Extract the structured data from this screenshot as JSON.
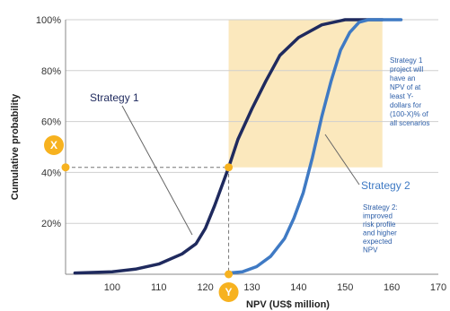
{
  "chart_data": {
    "type": "line",
    "xlabel": "NPV (US$ million)",
    "ylabel": "Cumulative probability",
    "xlim": [
      90,
      170
    ],
    "ylim": [
      0,
      100
    ],
    "x_ticks": [
      "100",
      "110",
      "120",
      "130",
      "140",
      "150",
      "160",
      "170"
    ],
    "y_ticks": [
      "20%",
      "40%",
      "60%",
      "80%",
      "100%"
    ],
    "grid": true,
    "series": [
      {
        "name": "Strategy 1",
        "color": "#1f2a5e",
        "points": [
          [
            92,
            0.5
          ],
          [
            100,
            1
          ],
          [
            105,
            2
          ],
          [
            110,
            4
          ],
          [
            115,
            8
          ],
          [
            118,
            12
          ],
          [
            120,
            18
          ],
          [
            122,
            27
          ],
          [
            125,
            42
          ],
          [
            127,
            53
          ],
          [
            130,
            65
          ],
          [
            133,
            76
          ],
          [
            136,
            86
          ],
          [
            140,
            93
          ],
          [
            145,
            98
          ],
          [
            150,
            100
          ],
          [
            158,
            100
          ]
        ]
      },
      {
        "name": "Strategy 2",
        "color": "#3f7ac4",
        "points": [
          [
            125,
            0.5
          ],
          [
            128,
            1
          ],
          [
            131,
            3
          ],
          [
            134,
            7
          ],
          [
            137,
            14
          ],
          [
            139,
            22
          ],
          [
            141,
            32
          ],
          [
            143,
            46
          ],
          [
            145,
            62
          ],
          [
            147,
            76
          ],
          [
            149,
            88
          ],
          [
            151,
            95
          ],
          [
            153,
            99
          ],
          [
            155,
            100
          ],
          [
            162,
            100
          ]
        ]
      }
    ],
    "annotations": {
      "x_marker": "X",
      "y_marker": "Y",
      "marker_x_value": 125,
      "marker_y_value": 42,
      "shaded_region": {
        "x": [
          125,
          158
        ],
        "y": [
          42,
          100
        ],
        "color": "#fbe8bd"
      },
      "note_1": [
        "Strategy 1",
        "project will",
        "have an",
        "NPV of at",
        "least Y-",
        "dollars for",
        "(100-X)% of",
        "all scenarios"
      ],
      "note_2": [
        "Strategy 2:",
        "improved",
        "risk profile",
        "and higher",
        "expected",
        "NPV"
      ]
    },
    "colors": {
      "marker": "#f7b21f",
      "note_text": "#2c5ea8"
    }
  }
}
